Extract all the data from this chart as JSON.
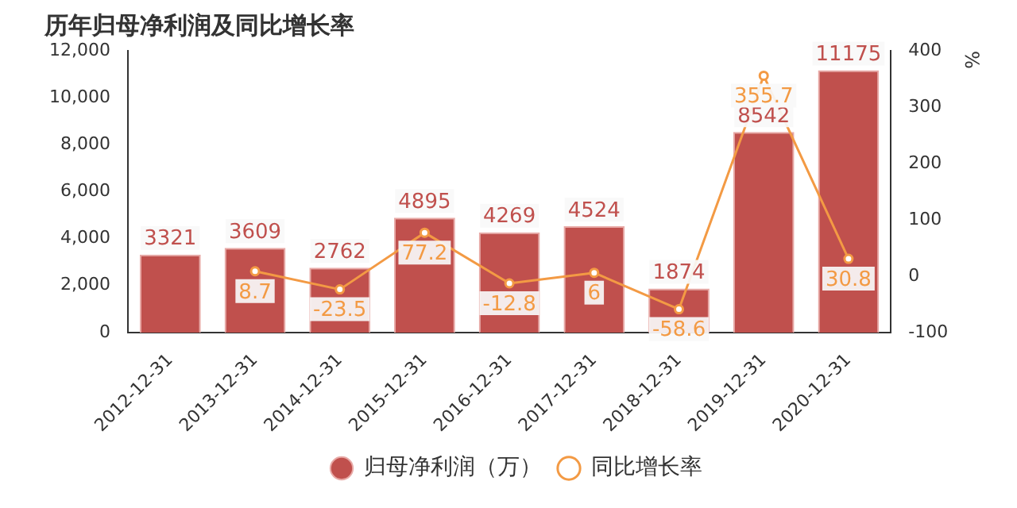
{
  "chart_data": {
    "type": "bar",
    "title": "历年归母净利润及同比增长率",
    "y2label": "%",
    "categories": [
      "2012-12-31",
      "2013-12-31",
      "2014-12-31",
      "2015-12-31",
      "2016-12-31",
      "2017-12-31",
      "2018-12-31",
      "2019-12-31",
      "2020-12-31"
    ],
    "series": [
      {
        "name": "归母净利润（万）",
        "color": "#c0504d",
        "values": [
          3321,
          3609,
          2762,
          4895,
          4269,
          4524,
          1874,
          8542,
          11175
        ]
      },
      {
        "name": "同比增长率",
        "type": "line",
        "axis": "y2",
        "color": "#f39a44",
        "values": [
          null,
          8.7,
          -23.5,
          77.2,
          -12.8,
          6,
          -58.6,
          355.7,
          30.8
        ]
      }
    ],
    "ylim": [
      0,
      12000
    ],
    "yticks": [
      0,
      {
        "value": 2000,
        "label": "2,000"
      },
      {
        "value": 4000,
        "label": "4,000"
      },
      {
        "value": 6000,
        "label": "6,000"
      },
      {
        "value": 8000,
        "label": "8,000"
      },
      {
        "value": 10000,
        "label": "10,000"
      },
      {
        "value": 12000,
        "label": "12,000"
      }
    ],
    "y2lim": [
      -100,
      400
    ],
    "y2ticks": [
      -100,
      0,
      100,
      200,
      300,
      400
    ],
    "data_labels": true,
    "legend": "bottom",
    "marker": "circle",
    "grid": false
  }
}
